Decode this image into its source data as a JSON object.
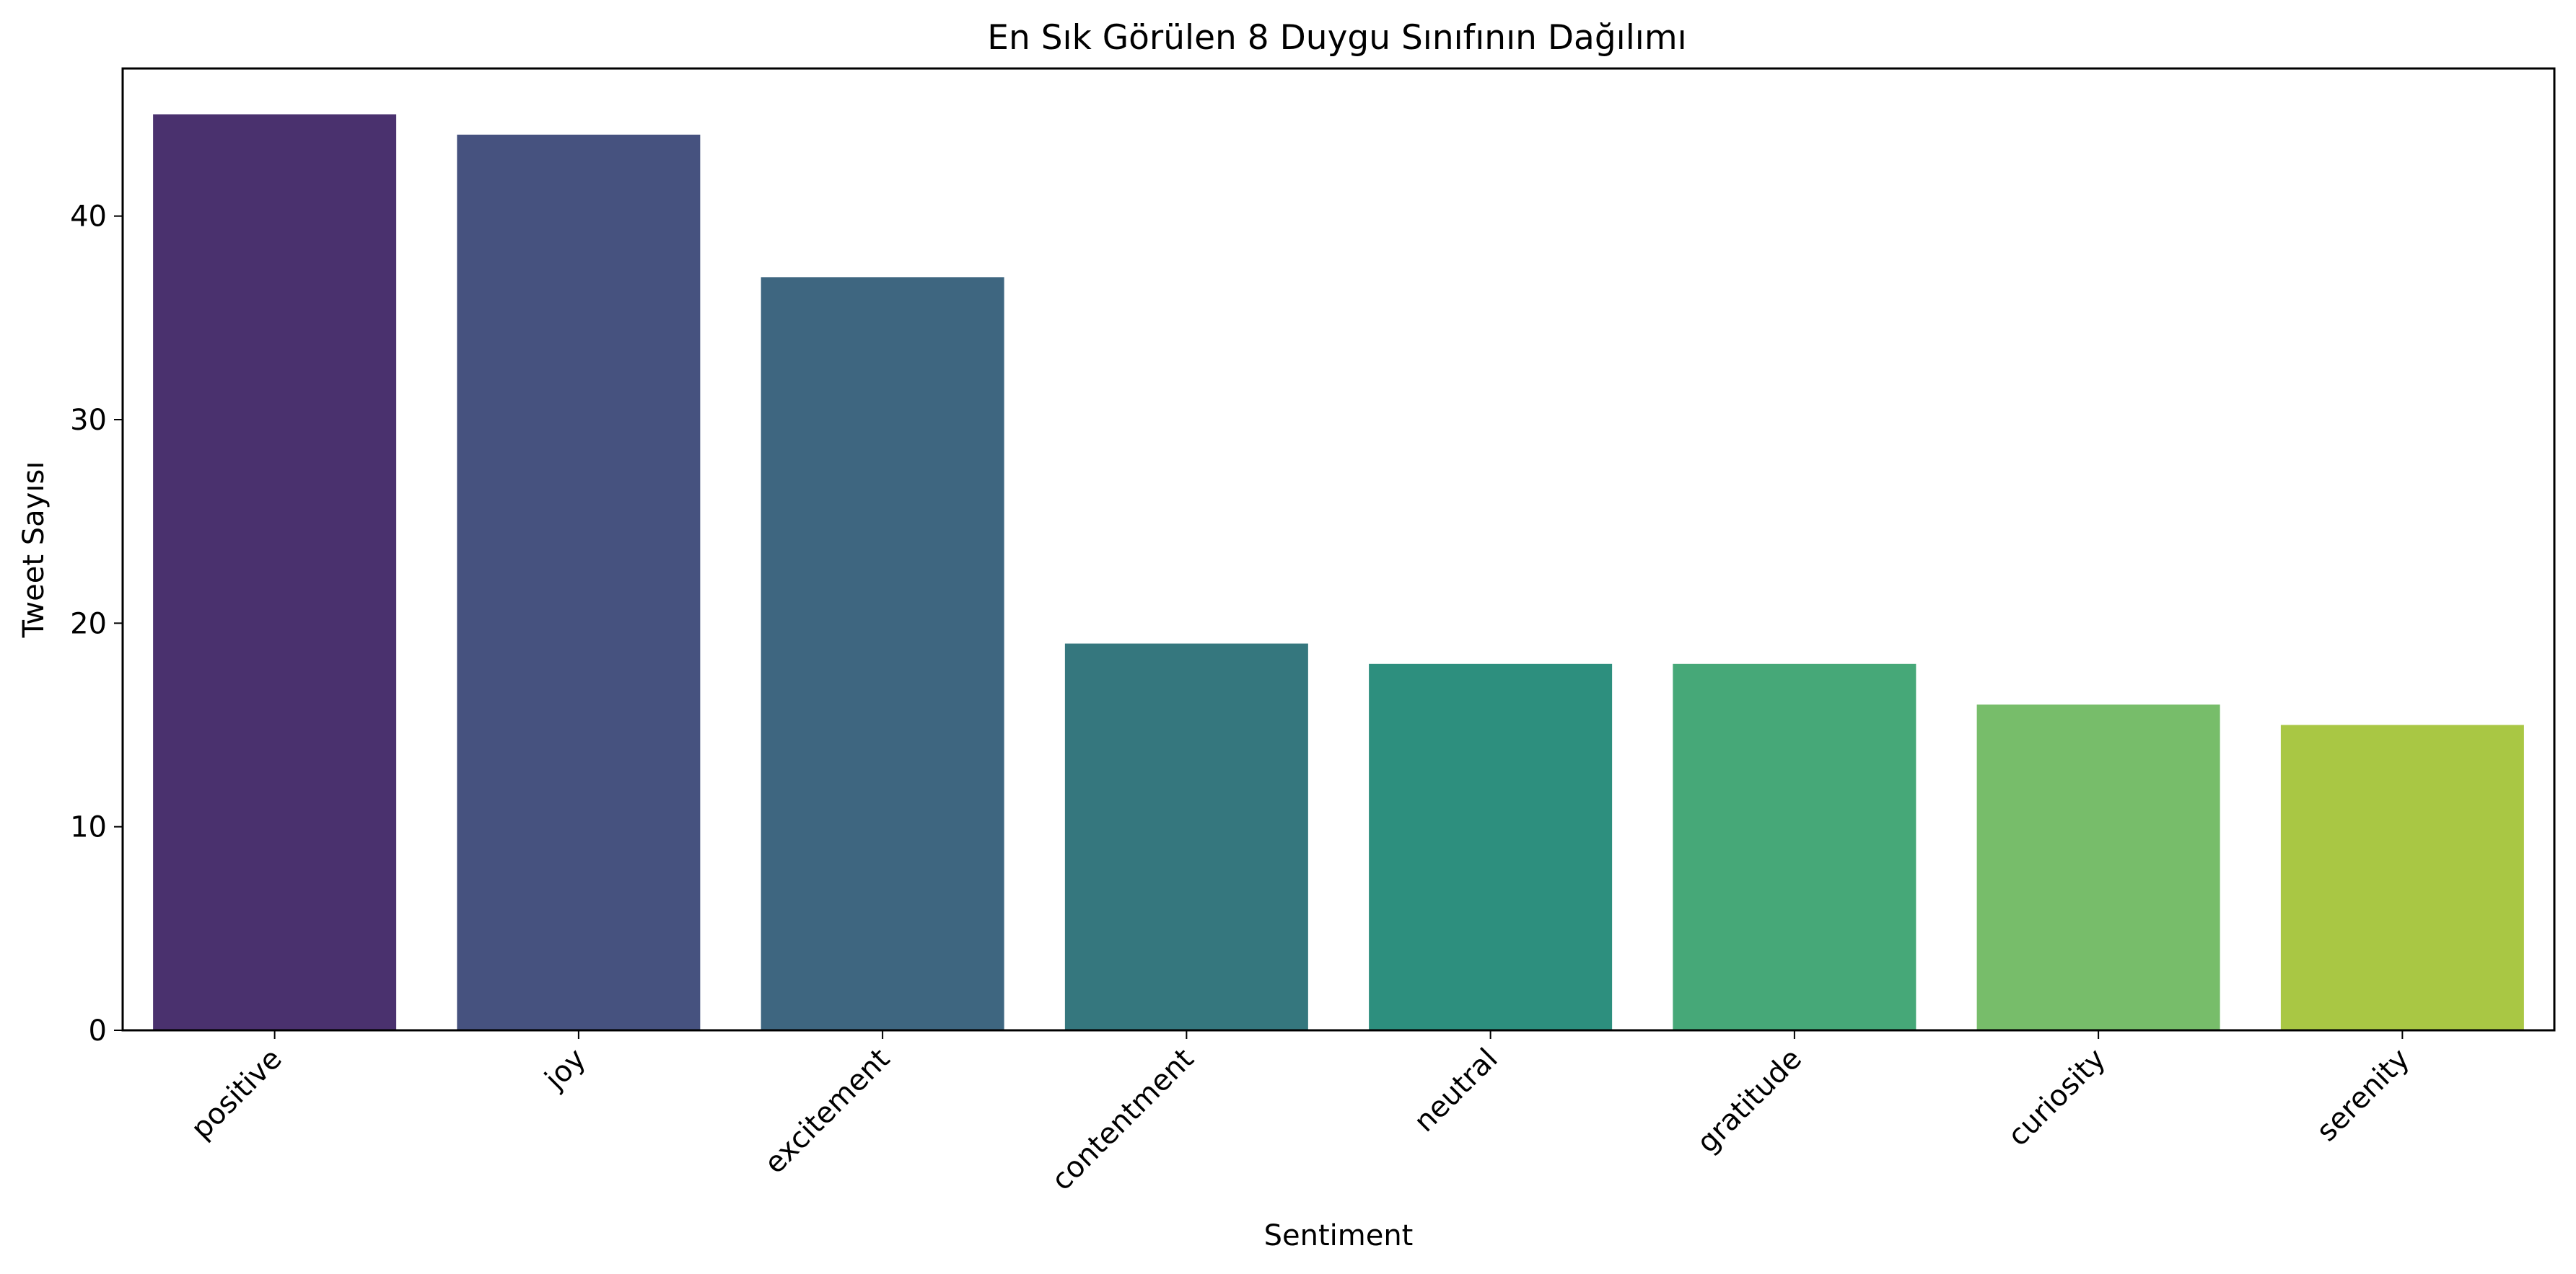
{
  "chart_data": {
    "type": "bar",
    "title": "En Sık Görülen 8 Duygu Sınıfının Dağılımı",
    "xlabel": "Sentiment",
    "ylabel": "Tweet Sayısı",
    "categories": [
      "positive",
      "joy",
      "excitement",
      "contentment",
      "neutral",
      "gratitude",
      "curiosity",
      "serenity"
    ],
    "values": [
      45,
      44,
      37,
      19,
      18,
      18,
      16,
      15
    ],
    "colors": [
      "#4a316e",
      "#46527f",
      "#3e6680",
      "#35777e",
      "#2d8f7e",
      "#46a878",
      "#77bd6a",
      "#a9c744"
    ],
    "ylim": [
      0,
      47.25
    ],
    "yticks": [
      0,
      10,
      20,
      30,
      40
    ],
    "grid": false
  }
}
